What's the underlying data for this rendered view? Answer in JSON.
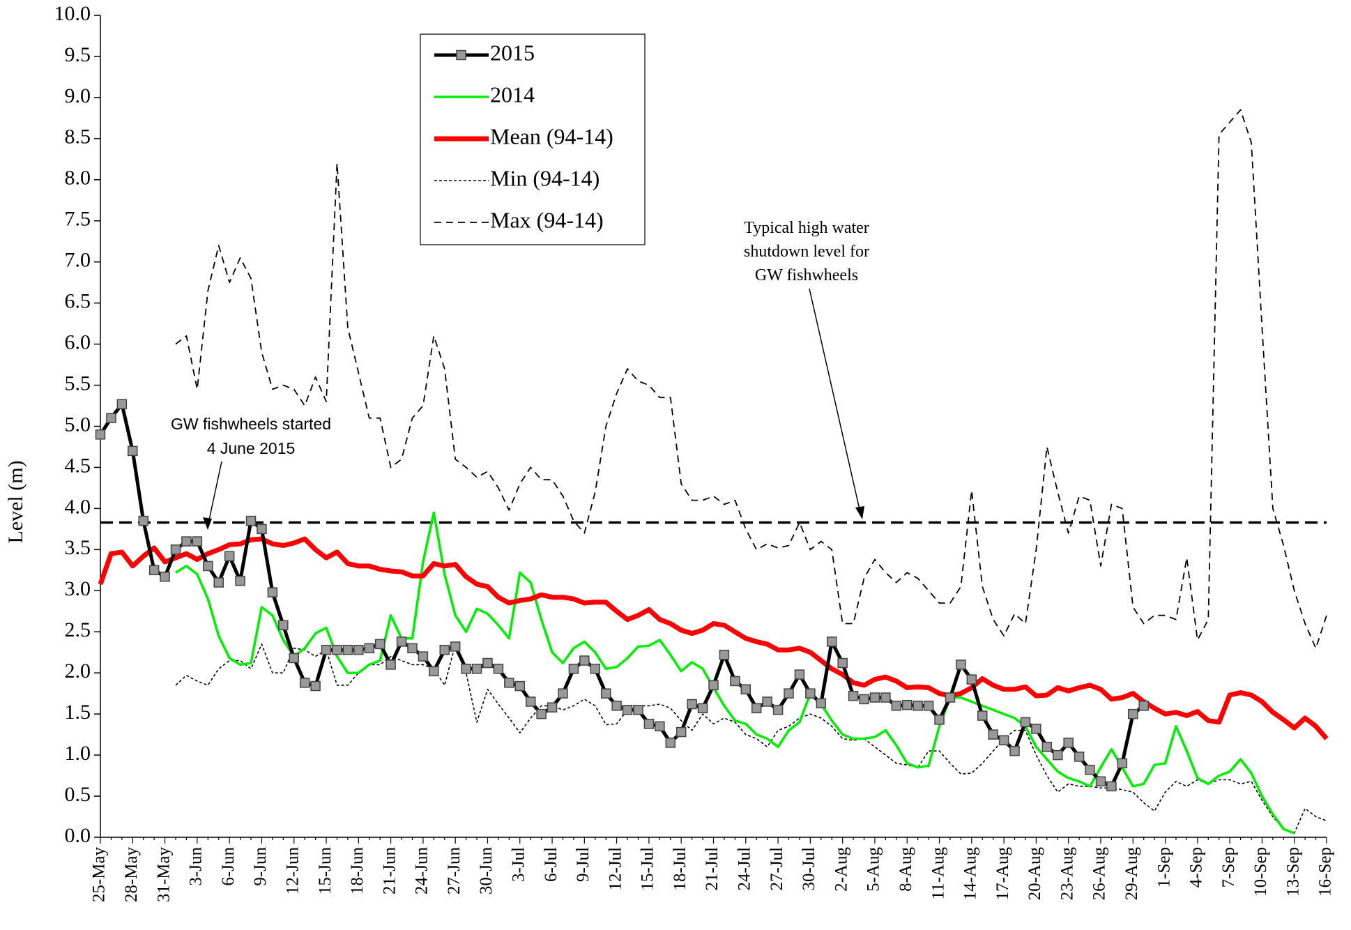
{
  "chart_data": {
    "type": "line",
    "y_label": "Level (m)",
    "categories": [
      "25-May",
      null,
      null,
      "28-May",
      null,
      null,
      "31-May",
      null,
      null,
      "3-Jun",
      null,
      null,
      "6-Jun",
      null,
      null,
      "9-Jun",
      null,
      null,
      "12-Jun",
      null,
      null,
      "15-Jun",
      null,
      null,
      "18-Jun",
      null,
      null,
      "21-Jun",
      null,
      null,
      "24-Jun",
      null,
      null,
      "27-Jun",
      null,
      null,
      "30-Jun",
      null,
      null,
      "3-Jul",
      null,
      null,
      "6-Jul",
      null,
      null,
      "9-Jul",
      null,
      null,
      "12-Jul",
      null,
      null,
      "15-Jul",
      null,
      null,
      "18-Jul",
      null,
      null,
      "21-Jul",
      null,
      null,
      "24-Jul",
      null,
      null,
      "27-Jul",
      null,
      null,
      "30-Jul",
      null,
      null,
      "2-Aug",
      null,
      null,
      "5-Aug",
      null,
      null,
      "8-Aug",
      null,
      null,
      "11-Aug",
      null,
      null,
      "14-Aug",
      null,
      null,
      "17-Aug",
      null,
      null,
      "20-Aug",
      null,
      null,
      "23-Aug",
      null,
      null,
      "26-Aug",
      null,
      null,
      "29-Aug",
      null,
      null,
      "1-Sep",
      null,
      null,
      "4-Sep",
      null,
      null,
      "7-Sep",
      null,
      null,
      "10-Sep",
      null,
      null,
      "13-Sep",
      null,
      null,
      "16-Sep"
    ],
    "series": [
      {
        "name": "2015",
        "color": "#000000",
        "style": "solid",
        "width": 5,
        "marker": "square",
        "values": [
          4.9,
          5.1,
          5.27,
          4.7,
          3.85,
          3.25,
          3.17,
          3.5,
          3.6,
          3.6,
          3.3,
          3.1,
          3.42,
          3.12,
          3.85,
          3.75,
          2.98,
          2.58,
          2.18,
          1.88,
          1.84,
          2.28,
          2.28,
          2.28,
          2.28,
          2.3,
          2.35,
          2.1,
          2.38,
          2.3,
          2.2,
          2.02,
          2.28,
          2.32,
          2.05,
          2.05,
          2.12,
          2.05,
          1.88,
          1.84,
          1.65,
          1.5,
          1.58,
          1.75,
          2.05,
          2.15,
          2.05,
          1.75,
          1.6,
          1.55,
          1.55,
          1.38,
          1.35,
          1.15,
          1.28,
          1.62,
          1.57,
          1.85,
          2.22,
          1.9,
          1.8,
          1.57,
          1.65,
          1.55,
          1.75,
          1.98,
          1.75,
          1.63,
          2.38,
          2.12,
          1.72,
          1.68,
          1.7,
          1.7,
          1.6,
          1.61,
          1.6,
          1.6,
          1.43,
          1.7,
          2.1,
          1.92,
          1.48,
          1.25,
          1.18,
          1.05,
          1.4,
          1.32,
          1.1,
          1.0,
          1.15,
          0.98,
          0.82,
          0.68,
          0.62,
          0.9,
          1.5,
          1.6,
          null,
          null,
          null,
          null,
          null,
          null,
          null,
          null,
          null,
          null,
          null,
          null,
          null,
          null,
          null,
          null,
          null
        ]
      },
      {
        "name": "2014",
        "color": "#00ee00",
        "style": "solid",
        "width": 3.5,
        "values": [
          null,
          null,
          null,
          null,
          null,
          null,
          null,
          3.22,
          3.3,
          3.2,
          2.9,
          2.45,
          2.18,
          2.1,
          2.12,
          2.8,
          2.7,
          2.4,
          2.2,
          2.3,
          2.48,
          2.55,
          2.2,
          2.0,
          2.0,
          2.1,
          2.15,
          2.7,
          2.42,
          2.42,
          3.35,
          3.95,
          3.2,
          2.7,
          2.5,
          2.78,
          2.72,
          2.58,
          2.42,
          3.22,
          3.1,
          2.65,
          2.25,
          2.12,
          2.3,
          2.38,
          2.25,
          2.05,
          2.07,
          2.18,
          2.32,
          2.33,
          2.4,
          2.22,
          2.02,
          2.13,
          2.05,
          1.82,
          1.6,
          1.42,
          1.38,
          1.25,
          1.2,
          1.1,
          1.3,
          1.4,
          1.75,
          1.62,
          1.42,
          1.25,
          1.2,
          1.2,
          1.22,
          1.3,
          1.12,
          0.9,
          0.85,
          0.87,
          1.35,
          1.7,
          1.7,
          1.65,
          1.6,
          1.55,
          1.5,
          1.45,
          1.35,
          1.1,
          0.95,
          0.8,
          0.72,
          0.68,
          0.62,
          0.85,
          1.07,
          0.85,
          0.62,
          0.65,
          0.88,
          0.9,
          1.35,
          1.05,
          0.72,
          0.65,
          0.75,
          0.8,
          0.95,
          0.78,
          0.5,
          0.28,
          0.1,
          0.05,
          null,
          null,
          null
        ]
      },
      {
        "name": "Mean (94-14)",
        "color": "#ff0000",
        "style": "solid",
        "width": 7,
        "values": [
          3.08,
          3.45,
          3.47,
          3.3,
          3.42,
          3.52,
          3.35,
          3.4,
          3.45,
          3.38,
          3.45,
          3.5,
          3.56,
          3.57,
          3.62,
          3.63,
          3.57,
          3.55,
          3.58,
          3.63,
          3.5,
          3.4,
          3.47,
          3.33,
          3.3,
          3.3,
          3.26,
          3.24,
          3.23,
          3.18,
          3.18,
          3.33,
          3.3,
          3.32,
          3.17,
          3.08,
          3.05,
          2.92,
          2.85,
          2.88,
          2.9,
          2.95,
          2.92,
          2.92,
          2.9,
          2.85,
          2.86,
          2.86,
          2.75,
          2.65,
          2.7,
          2.77,
          2.65,
          2.6,
          2.52,
          2.48,
          2.52,
          2.6,
          2.58,
          2.5,
          2.42,
          2.38,
          2.35,
          2.28,
          2.28,
          2.3,
          2.25,
          2.15,
          2.05,
          1.98,
          1.88,
          1.85,
          1.92,
          1.95,
          1.9,
          1.82,
          1.83,
          1.82,
          1.75,
          1.72,
          1.75,
          1.82,
          1.93,
          1.85,
          1.8,
          1.8,
          1.83,
          1.72,
          1.73,
          1.82,
          1.78,
          1.82,
          1.85,
          1.8,
          1.68,
          1.7,
          1.75,
          1.65,
          1.57,
          1.5,
          1.52,
          1.48,
          1.53,
          1.42,
          1.4,
          1.73,
          1.76,
          1.73,
          1.65,
          1.52,
          1.43,
          1.33,
          1.45,
          1.35,
          1.2
        ]
      },
      {
        "name": "Min (94-14)",
        "color": "#000000",
        "style": "dotted",
        "width": 1.6,
        "values": [
          null,
          null,
          null,
          null,
          null,
          null,
          null,
          1.85,
          1.97,
          1.9,
          1.85,
          2.05,
          2.15,
          2.15,
          2.05,
          2.35,
          2.0,
          2.0,
          2.3,
          2.28,
          2.2,
          2.28,
          1.85,
          1.85,
          2.0,
          2.1,
          2.1,
          2.2,
          2.15,
          2.1,
          2.1,
          2.05,
          1.85,
          2.35,
          2.0,
          1.4,
          1.8,
          1.62,
          1.45,
          1.27,
          1.45,
          1.6,
          1.6,
          1.55,
          1.6,
          1.68,
          1.6,
          1.37,
          1.38,
          1.55,
          1.6,
          1.6,
          1.62,
          1.57,
          1.42,
          1.3,
          1.5,
          1.38,
          1.45,
          1.4,
          1.25,
          1.2,
          1.1,
          1.3,
          1.35,
          1.45,
          1.5,
          1.45,
          1.35,
          1.2,
          1.18,
          1.2,
          1.1,
          1.0,
          0.9,
          0.88,
          0.85,
          1.05,
          1.05,
          0.9,
          0.77,
          0.78,
          0.9,
          1.05,
          1.2,
          1.3,
          1.3,
          1.0,
          0.75,
          0.55,
          0.65,
          0.62,
          0.62,
          0.6,
          0.6,
          0.58,
          0.55,
          0.42,
          0.32,
          0.55,
          0.68,
          0.62,
          0.7,
          0.65,
          0.7,
          0.7,
          0.65,
          0.68,
          0.45,
          0.25,
          0.1,
          0.05,
          0.35,
          0.25,
          0.2
        ]
      },
      {
        "name": "Max (94-14)",
        "color": "#000000",
        "style": "dashed",
        "width": 1.8,
        "values": [
          null,
          null,
          null,
          null,
          null,
          null,
          null,
          6.0,
          6.1,
          5.45,
          6.65,
          7.2,
          6.75,
          7.05,
          6.8,
          5.9,
          5.45,
          5.5,
          5.45,
          5.25,
          5.6,
          5.3,
          8.2,
          6.2,
          5.65,
          5.1,
          5.1,
          4.5,
          4.6,
          5.1,
          5.25,
          6.1,
          5.7,
          4.6,
          4.5,
          4.38,
          4.45,
          4.25,
          3.98,
          4.3,
          4.5,
          4.35,
          4.35,
          4.15,
          3.85,
          3.7,
          4.2,
          5.0,
          5.4,
          5.7,
          5.55,
          5.5,
          5.35,
          5.35,
          4.3,
          4.1,
          4.1,
          4.15,
          4.05,
          4.1,
          3.75,
          3.5,
          3.57,
          3.52,
          3.55,
          3.83,
          3.5,
          3.6,
          3.5,
          2.6,
          2.6,
          3.15,
          3.38,
          3.22,
          3.1,
          3.22,
          3.15,
          3.0,
          2.85,
          2.85,
          3.05,
          4.22,
          3.05,
          2.65,
          2.45,
          2.72,
          2.6,
          3.5,
          4.75,
          4.2,
          3.7,
          4.15,
          4.1,
          3.3,
          4.05,
          4.0,
          2.8,
          2.6,
          2.7,
          2.7,
          2.65,
          3.4,
          2.4,
          2.65,
          8.55,
          8.7,
          8.85,
          8.45,
          6.2,
          4.0,
          3.55,
          3.0,
          2.6,
          2.3,
          2.7
        ]
      }
    ],
    "threshold": 3.83,
    "annotations": [
      {
        "lines": [
          "GW fishwheels  started",
          "4 June 2015"
        ]
      },
      {
        "lines": [
          "Typical high water",
          "shutdown level for",
          "GW fishwheels"
        ]
      }
    ],
    "ylim": [
      0,
      10
    ],
    "yticks": [
      {
        "value": 0,
        "label": "0.0"
      },
      0.5,
      {
        "value": 1,
        "label": "1.0"
      },
      1.5,
      {
        "value": 2,
        "label": "2.0"
      },
      2.5,
      {
        "value": 3,
        "label": "3.0"
      },
      3.5,
      {
        "value": 4,
        "label": "4.0"
      },
      4.5,
      {
        "value": 5,
        "label": "5.0"
      },
      5.5,
      {
        "value": 6,
        "label": "6.0"
      },
      6.5,
      {
        "value": 7,
        "label": "7.0"
      },
      7.5,
      {
        "value": 8,
        "label": "8.0"
      },
      8.5,
      {
        "value": 9,
        "label": "9.0"
      },
      9.5,
      {
        "value": 10,
        "label": "10.0"
      }
    ],
    "legend": "upper-center"
  }
}
